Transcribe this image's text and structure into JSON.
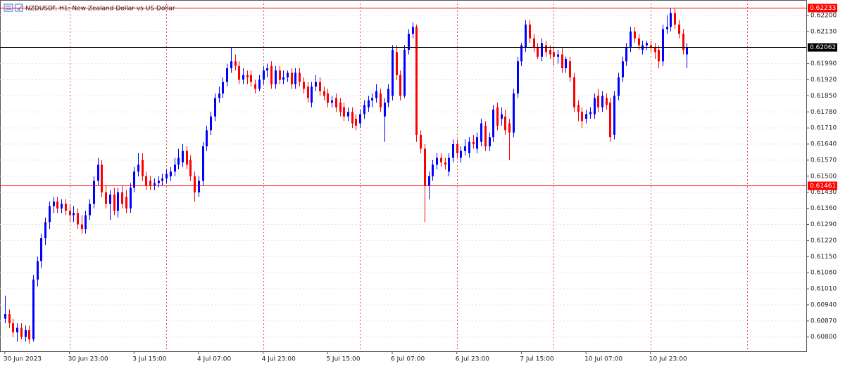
{
  "chart_data": {
    "type": "candlestick",
    "title": "NZDUSDf, H1:  New Zealand Dollar vs US Dollar",
    "up_color": "#0000ff",
    "down_color": "#ff0000",
    "grid": true,
    "ylim": [
      0.60738,
      0.62267
    ],
    "xlim": [
      -1.2,
      198.6
    ],
    "yticks": [
      {
        "value": 0.622,
        "label": "0.62200"
      },
      {
        "value": 0.6213,
        "label": "0.62130"
      },
      {
        "value": 0.6199,
        "label": "0.61990"
      },
      {
        "value": 0.6192,
        "label": "0.61920"
      },
      {
        "value": 0.6185,
        "label": "0.61850"
      },
      {
        "value": 0.6178,
        "label": "0.61780"
      },
      {
        "value": 0.6171,
        "label": "0.61710"
      },
      {
        "value": 0.6164,
        "label": "0.61640"
      },
      {
        "value": 0.6157,
        "label": "0.61570"
      },
      {
        "value": 0.615,
        "label": "0.61500"
      },
      {
        "value": 0.6143,
        "label": "0.61430"
      },
      {
        "value": 0.6136,
        "label": "0.61360"
      },
      {
        "value": 0.6129,
        "label": "0.61290"
      },
      {
        "value": 0.6122,
        "label": "0.61220"
      },
      {
        "value": 0.6115,
        "label": "0.61150"
      },
      {
        "value": 0.6108,
        "label": "0.61080"
      },
      {
        "value": 0.6101,
        "label": "0.61010"
      },
      {
        "value": 0.6094,
        "label": "0.60940"
      },
      {
        "value": 0.6087,
        "label": "0.60870"
      },
      {
        "value": 0.608,
        "label": "0.60800"
      }
    ],
    "xticks": [
      {
        "value": 0,
        "label": "30 Jun 2023"
      },
      {
        "value": 16,
        "label": "30 Jun 23:00"
      },
      {
        "value": 32,
        "label": "3 Jul 15:00"
      },
      {
        "value": 48,
        "label": "4 Jul 07:00"
      },
      {
        "value": 64,
        "label": "4 Jul 23:00"
      },
      {
        "value": 80,
        "label": "5 Jul 15:00"
      },
      {
        "value": 96,
        "label": "6 Jul 07:00"
      },
      {
        "value": 112,
        "label": "6 Jul 23:00"
      },
      {
        "value": 128,
        "label": "7 Jul 15:00"
      },
      {
        "value": 144,
        "label": "10 Jul 07:00"
      },
      {
        "value": 160,
        "label": "10 Jul 23:00"
      }
    ],
    "hlines": [
      {
        "value": 0.62233,
        "color": "#ff0000"
      },
      {
        "value": 0.62062,
        "color": "#000000"
      },
      {
        "value": 0.61461,
        "color": "#ff0000"
      }
    ],
    "ohlc": [
      [
        0.6088,
        0.6098,
        0.6086,
        0.609
      ],
      [
        0.609,
        0.6092,
        0.6084,
        0.6086
      ],
      [
        0.6086,
        0.6088,
        0.608,
        0.6082
      ],
      [
        0.6082,
        0.6086,
        0.6078,
        0.6084
      ],
      [
        0.6084,
        0.6086,
        0.6079,
        0.608
      ],
      [
        0.608,
        0.6085,
        0.6078,
        0.6083
      ],
      [
        0.6083,
        0.6085,
        0.6077,
        0.6079
      ],
      [
        0.6079,
        0.6107,
        0.6078,
        0.6105
      ],
      [
        0.6105,
        0.6115,
        0.6102,
        0.6113
      ],
      [
        0.6113,
        0.6125,
        0.611,
        0.6123
      ],
      [
        0.6123,
        0.6132,
        0.612,
        0.613
      ],
      [
        0.613,
        0.6139,
        0.6127,
        0.6137
      ],
      [
        0.6137,
        0.6141,
        0.6134,
        0.6139
      ],
      [
        0.6139,
        0.6141,
        0.6134,
        0.6136
      ],
      [
        0.6136,
        0.614,
        0.6134,
        0.6138
      ],
      [
        0.6138,
        0.614,
        0.6133,
        0.6135
      ],
      [
        0.6135,
        0.6138,
        0.613,
        0.6133
      ],
      [
        0.6133,
        0.6137,
        0.613,
        0.6134
      ],
      [
        0.6134,
        0.6136,
        0.6127,
        0.6129
      ],
      [
        0.6129,
        0.6133,
        0.6125,
        0.6127
      ],
      [
        0.6127,
        0.6135,
        0.6125,
        0.6133
      ],
      [
        0.6133,
        0.614,
        0.6131,
        0.6138
      ],
      [
        0.6138,
        0.615,
        0.6136,
        0.6148
      ],
      [
        0.6148,
        0.6158,
        0.6146,
        0.6155
      ],
      [
        0.6155,
        0.6157,
        0.6141,
        0.6143
      ],
      [
        0.6143,
        0.6146,
        0.6136,
        0.6138
      ],
      [
        0.6138,
        0.6144,
        0.6131,
        0.6142
      ],
      [
        0.6142,
        0.6145,
        0.6133,
        0.6135
      ],
      [
        0.6135,
        0.6145,
        0.6132,
        0.6143
      ],
      [
        0.6143,
        0.6146,
        0.6136,
        0.6138
      ],
      [
        0.6141,
        0.6144,
        0.6134,
        0.6136
      ],
      [
        0.6136,
        0.6147,
        0.6134,
        0.6145
      ],
      [
        0.6145,
        0.6154,
        0.6143,
        0.6152
      ],
      [
        0.6152,
        0.616,
        0.615,
        0.6155
      ],
      [
        0.6157,
        0.616,
        0.6148,
        0.615
      ],
      [
        0.615,
        0.6152,
        0.6144,
        0.6146
      ],
      [
        0.6148,
        0.615,
        0.6144,
        0.6146
      ],
      [
        0.6146,
        0.6149,
        0.6144,
        0.6147
      ],
      [
        0.6147,
        0.615,
        0.6145,
        0.6148
      ],
      [
        0.6148,
        0.6151,
        0.6146,
        0.6149
      ],
      [
        0.6149,
        0.6153,
        0.6147,
        0.6151
      ],
      [
        0.615,
        0.6154,
        0.6148,
        0.6152
      ],
      [
        0.6152,
        0.6158,
        0.615,
        0.6155
      ],
      [
        0.6155,
        0.6162,
        0.6153,
        0.6158
      ],
      [
        0.6156,
        0.6164,
        0.6154,
        0.6161
      ],
      [
        0.6161,
        0.6163,
        0.6153,
        0.6155
      ],
      [
        0.6157,
        0.6159,
        0.6148,
        0.615
      ],
      [
        0.615,
        0.6152,
        0.6139,
        0.6143
      ],
      [
        0.6143,
        0.615,
        0.6141,
        0.6148
      ],
      [
        0.6148,
        0.6165,
        0.6146,
        0.6163
      ],
      [
        0.6163,
        0.6172,
        0.6161,
        0.617
      ],
      [
        0.617,
        0.6178,
        0.6168,
        0.6176
      ],
      [
        0.6176,
        0.6186,
        0.6174,
        0.6184
      ],
      [
        0.6184,
        0.6189,
        0.6182,
        0.6186
      ],
      [
        0.6186,
        0.6193,
        0.6184,
        0.6191
      ],
      [
        0.6191,
        0.6199,
        0.6189,
        0.6197
      ],
      [
        0.6197,
        0.6206,
        0.6195,
        0.62
      ],
      [
        0.62,
        0.6203,
        0.6196,
        0.6198
      ],
      [
        0.6198,
        0.62,
        0.619,
        0.6192
      ],
      [
        0.6192,
        0.6197,
        0.619,
        0.6194
      ],
      [
        0.6194,
        0.6196,
        0.619,
        0.6193
      ],
      [
        0.6194,
        0.6196,
        0.6189,
        0.6191
      ],
      [
        0.619,
        0.6192,
        0.6186,
        0.6188
      ],
      [
        0.6188,
        0.6194,
        0.6187,
        0.6192
      ],
      [
        0.6192,
        0.6198,
        0.619,
        0.6196
      ],
      [
        0.6196,
        0.6199,
        0.6193,
        0.6197
      ],
      [
        0.6198,
        0.62,
        0.6188,
        0.619
      ],
      [
        0.619,
        0.6198,
        0.6188,
        0.6196
      ],
      [
        0.6196,
        0.6198,
        0.619,
        0.6192
      ],
      [
        0.6192,
        0.6196,
        0.619,
        0.6193
      ],
      [
        0.6193,
        0.6196,
        0.6191,
        0.6195
      ],
      [
        0.6195,
        0.6197,
        0.6188,
        0.619
      ],
      [
        0.619,
        0.6197,
        0.6188,
        0.6195
      ],
      [
        0.6195,
        0.6197,
        0.6189,
        0.6191
      ],
      [
        0.6191,
        0.6193,
        0.6186,
        0.6188
      ],
      [
        0.6189,
        0.6191,
        0.6182,
        0.6184
      ],
      [
        0.6182,
        0.6191,
        0.618,
        0.6189
      ],
      [
        0.6189,
        0.6194,
        0.6187,
        0.6191
      ],
      [
        0.6191,
        0.6193,
        0.6185,
        0.6187
      ],
      [
        0.6187,
        0.6189,
        0.6183,
        0.6185
      ],
      [
        0.6186,
        0.6188,
        0.618,
        0.6182
      ],
      [
        0.6182,
        0.6185,
        0.618,
        0.6183
      ],
      [
        0.6184,
        0.6186,
        0.6178,
        0.618
      ],
      [
        0.6182,
        0.6184,
        0.6176,
        0.6178
      ],
      [
        0.618,
        0.6182,
        0.6174,
        0.6176
      ],
      [
        0.6176,
        0.618,
        0.6174,
        0.6178
      ],
      [
        0.6178,
        0.618,
        0.6171,
        0.6173
      ],
      [
        0.6175,
        0.6177,
        0.617,
        0.6172
      ],
      [
        0.6173,
        0.6179,
        0.6171,
        0.6177
      ],
      [
        0.6177,
        0.6183,
        0.6175,
        0.6181
      ],
      [
        0.618,
        0.6185,
        0.6178,
        0.6183
      ],
      [
        0.6183,
        0.6186,
        0.618,
        0.6184
      ],
      [
        0.6184,
        0.619,
        0.6182,
        0.6187
      ],
      [
        0.6186,
        0.6188,
        0.6178,
        0.618
      ],
      [
        0.6176,
        0.6184,
        0.6165,
        0.6182
      ],
      [
        0.6182,
        0.619,
        0.618,
        0.6188
      ],
      [
        0.6185,
        0.6207,
        0.6183,
        0.6205
      ],
      [
        0.6204,
        0.6207,
        0.6192,
        0.6194
      ],
      [
        0.6194,
        0.6196,
        0.6183,
        0.6185
      ],
      [
        0.6185,
        0.6207,
        0.6184,
        0.6205
      ],
      [
        0.6205,
        0.6214,
        0.6203,
        0.6212
      ],
      [
        0.6212,
        0.6217,
        0.621,
        0.6215
      ],
      [
        0.6215,
        0.6216,
        0.6165,
        0.6168
      ],
      [
        0.6168,
        0.617,
        0.616,
        0.6162
      ],
      [
        0.6162,
        0.6164,
        0.613,
        0.6146
      ],
      [
        0.6146,
        0.6152,
        0.614,
        0.615
      ],
      [
        0.615,
        0.6157,
        0.6148,
        0.6155
      ],
      [
        0.6155,
        0.616,
        0.6153,
        0.6158
      ],
      [
        0.6158,
        0.616,
        0.6154,
        0.6156
      ],
      [
        0.6156,
        0.6158,
        0.6153,
        0.6155
      ],
      [
        0.6152,
        0.616,
        0.615,
        0.6158
      ],
      [
        0.6158,
        0.6166,
        0.6156,
        0.6164
      ],
      [
        0.6164,
        0.6166,
        0.6158,
        0.616
      ],
      [
        0.6158,
        0.6163,
        0.6156,
        0.6161
      ],
      [
        0.6161,
        0.6166,
        0.6159,
        0.6163
      ],
      [
        0.616,
        0.6167,
        0.6158,
        0.6165
      ],
      [
        0.6165,
        0.6168,
        0.6162,
        0.6164
      ],
      [
        0.6162,
        0.6169,
        0.616,
        0.6167
      ],
      [
        0.6165,
        0.6175,
        0.6163,
        0.6173
      ],
      [
        0.6172,
        0.6174,
        0.6161,
        0.6163
      ],
      [
        0.6163,
        0.6169,
        0.6161,
        0.6167
      ],
      [
        0.6167,
        0.6181,
        0.6165,
        0.6179
      ],
      [
        0.618,
        0.6182,
        0.617,
        0.6172
      ],
      [
        0.6175,
        0.618,
        0.6172,
        0.6177
      ],
      [
        0.6176,
        0.6179,
        0.6168,
        0.617
      ],
      [
        0.6173,
        0.6175,
        0.6157,
        0.6169
      ],
      [
        0.6169,
        0.6188,
        0.6167,
        0.6186
      ],
      [
        0.6186,
        0.6202,
        0.6184,
        0.62
      ],
      [
        0.62,
        0.6208,
        0.6198,
        0.6207
      ],
      [
        0.6206,
        0.6218,
        0.6204,
        0.6216
      ],
      [
        0.6216,
        0.6218,
        0.6208,
        0.621
      ],
      [
        0.621,
        0.6212,
        0.6204,
        0.6206
      ],
      [
        0.6206,
        0.6208,
        0.6201,
        0.6202
      ],
      [
        0.6202,
        0.621,
        0.62,
        0.6208
      ],
      [
        0.6207,
        0.6209,
        0.6202,
        0.6204
      ],
      [
        0.6205,
        0.6207,
        0.6201,
        0.6203
      ],
      [
        0.6204,
        0.6206,
        0.6198,
        0.6202
      ],
      [
        0.6202,
        0.6205,
        0.6199,
        0.6203
      ],
      [
        0.6203,
        0.6206,
        0.6195,
        0.6197
      ],
      [
        0.6197,
        0.6202,
        0.6195,
        0.6201
      ],
      [
        0.62,
        0.6202,
        0.6191,
        0.6193
      ],
      [
        0.6193,
        0.6195,
        0.6178,
        0.618
      ],
      [
        0.6181,
        0.6183,
        0.6174,
        0.6178
      ],
      [
        0.6178,
        0.618,
        0.6171,
        0.6174
      ],
      [
        0.6175,
        0.6179,
        0.6173,
        0.6177
      ],
      [
        0.6177,
        0.618,
        0.6175,
        0.6178
      ],
      [
        0.6177,
        0.6186,
        0.6175,
        0.6184
      ],
      [
        0.6185,
        0.6188,
        0.6178,
        0.618
      ],
      [
        0.618,
        0.6187,
        0.6178,
        0.6185
      ],
      [
        0.6184,
        0.6186,
        0.6179,
        0.6181
      ],
      [
        0.6182,
        0.6184,
        0.6165,
        0.6167
      ],
      [
        0.6168,
        0.6187,
        0.6166,
        0.6185
      ],
      [
        0.6185,
        0.6195,
        0.6183,
        0.6193
      ],
      [
        0.6193,
        0.6202,
        0.6191,
        0.62
      ],
      [
        0.62,
        0.6208,
        0.6198,
        0.6206
      ],
      [
        0.6206,
        0.6215,
        0.6204,
        0.6213
      ],
      [
        0.6213,
        0.6215,
        0.6208,
        0.621
      ],
      [
        0.621,
        0.6212,
        0.6205,
        0.6207
      ],
      [
        0.6205,
        0.6209,
        0.6203,
        0.6207
      ],
      [
        0.6207,
        0.6209,
        0.6205,
        0.6208
      ],
      [
        0.6207,
        0.6209,
        0.6204,
        0.6206
      ],
      [
        0.6206,
        0.6208,
        0.6201,
        0.6204
      ],
      [
        0.6205,
        0.6207,
        0.6197,
        0.62
      ],
      [
        0.62,
        0.6216,
        0.6198,
        0.6214
      ],
      [
        0.6214,
        0.622,
        0.6212,
        0.6215
      ],
      [
        0.6215,
        0.62233,
        0.6213,
        0.6221
      ],
      [
        0.6221,
        0.62233,
        0.6214,
        0.6216
      ],
      [
        0.6216,
        0.6218,
        0.621,
        0.6212
      ],
      [
        0.6212,
        0.6214,
        0.6203,
        0.6205
      ],
      [
        0.6203,
        0.6208,
        0.6197,
        0.62062
      ]
    ]
  }
}
